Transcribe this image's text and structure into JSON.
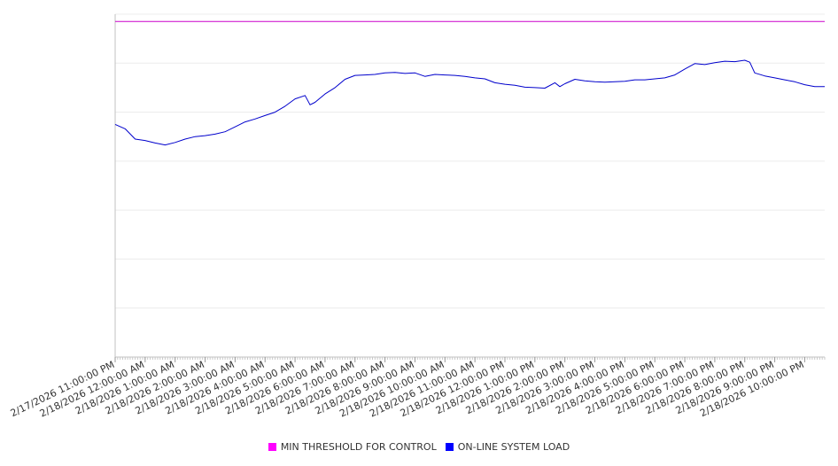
{
  "chart_data": {
    "type": "line",
    "x_axis": {
      "tick_labels": [
        "2/17/2026 11:00:00 PM",
        "2/18/2026 12:00:00 AM",
        "2/18/2026 1:00:00 AM",
        "2/18/2026 2:00:00 AM",
        "2/18/2026 3:00:00 AM",
        "2/18/2026 4:00:00 AM",
        "2/18/2026 5:00:00 AM",
        "2/18/2026 6:00:00 AM",
        "2/18/2026 7:00:00 AM",
        "2/18/2026 8:00:00 AM",
        "2/18/2026 9:00:00 AM",
        "2/18/2026 10:00:00 AM",
        "2/18/2026 11:00:00 AM",
        "2/18/2026 12:00:00 PM",
        "2/18/2026 1:00:00 PM",
        "2/18/2026 2:00:00 PM",
        "2/18/2026 3:00:00 PM",
        "2/18/2026 4:00:00 PM",
        "2/18/2026 5:00:00 PM",
        "2/18/2026 6:00:00 PM",
        "2/18/2026 7:00:00 PM",
        "2/18/2026 8:00:00 PM",
        "2/18/2026 9:00:00 PM",
        "2/18/2026 10:00:00 PM"
      ],
      "range": [
        "2/17/2026 11:00:00 PM",
        "2/18/2026 10:40:00 PM"
      ]
    },
    "y_axis": {
      "tick_labels": [],
      "range": [
        0,
        7
      ],
      "grid": true
    },
    "series": [
      {
        "name": "MIN THRESHOLD FOR CONTROL",
        "color": "#cc00cc",
        "points": [
          [
            "2/17/2026 11:00:00 PM",
            6.85
          ],
          [
            "2/18/2026 10:40:00 PM",
            6.85
          ]
        ]
      },
      {
        "name": "ON-LINE SYSTEM LOAD",
        "color": "#0000cc",
        "points": [
          [
            "2/17/2026 11:00:00 PM",
            4.75
          ],
          [
            "2/17/2026 11:20:00 PM",
            4.66
          ],
          [
            "2/17/2026 11:40:00 PM",
            4.45
          ],
          [
            "2/18/2026 12:00:00 AM",
            4.42
          ],
          [
            "2/18/2026 12:20:00 AM",
            4.37
          ],
          [
            "2/18/2026 12:40:00 AM",
            4.33
          ],
          [
            "2/18/2026 1:00:00 AM",
            4.38
          ],
          [
            "2/18/2026 1:20:00 AM",
            4.45
          ],
          [
            "2/18/2026 1:40:00 AM",
            4.5
          ],
          [
            "2/18/2026 2:00:00 AM",
            4.52
          ],
          [
            "2/18/2026 2:20:00 AM",
            4.55
          ],
          [
            "2/18/2026 2:40:00 AM",
            4.6
          ],
          [
            "2/18/2026 3:00:00 AM",
            4.7
          ],
          [
            "2/18/2026 3:20:00 AM",
            4.8
          ],
          [
            "2/18/2026 3:40:00 AM",
            4.86
          ],
          [
            "2/18/2026 4:00:00 AM",
            4.93
          ],
          [
            "2/18/2026 4:20:00 AM",
            5.0
          ],
          [
            "2/18/2026 4:40:00 AM",
            5.12
          ],
          [
            "2/18/2026 5:00:00 AM",
            5.27
          ],
          [
            "2/18/2026 5:20:00 AM",
            5.34
          ],
          [
            "2/18/2026 5:30:00 AM",
            5.15
          ],
          [
            "2/18/2026 5:40:00 AM",
            5.2
          ],
          [
            "2/18/2026 6:00:00 AM",
            5.37
          ],
          [
            "2/18/2026 6:20:00 AM",
            5.5
          ],
          [
            "2/18/2026 6:40:00 AM",
            5.67
          ],
          [
            "2/18/2026 7:00:00 AM",
            5.75
          ],
          [
            "2/18/2026 7:20:00 AM",
            5.76
          ],
          [
            "2/18/2026 7:40:00 AM",
            5.77
          ],
          [
            "2/18/2026 8:00:00 AM",
            5.8
          ],
          [
            "2/18/2026 8:20:00 AM",
            5.81
          ],
          [
            "2/18/2026 8:40:00 AM",
            5.79
          ],
          [
            "2/18/2026 9:00:00 AM",
            5.8
          ],
          [
            "2/18/2026 9:20:00 AM",
            5.73
          ],
          [
            "2/18/2026 9:40:00 AM",
            5.77
          ],
          [
            "2/18/2026 10:00:00 AM",
            5.76
          ],
          [
            "2/18/2026 10:20:00 AM",
            5.75
          ],
          [
            "2/18/2026 10:40:00 AM",
            5.73
          ],
          [
            "2/18/2026 11:00:00 AM",
            5.7
          ],
          [
            "2/18/2026 11:20:00 AM",
            5.68
          ],
          [
            "2/18/2026 11:40:00 AM",
            5.6
          ],
          [
            "2/18/2026 12:00:00 PM",
            5.57
          ],
          [
            "2/18/2026 12:20:00 PM",
            5.55
          ],
          [
            "2/18/2026 12:40:00 PM",
            5.51
          ],
          [
            "2/18/2026 1:00:00 PM",
            5.5
          ],
          [
            "2/18/2026 1:20:00 PM",
            5.49
          ],
          [
            "2/18/2026 1:40:00 PM",
            5.6
          ],
          [
            "2/18/2026 1:50:00 PM",
            5.52
          ],
          [
            "2/18/2026 2:00:00 PM",
            5.58
          ],
          [
            "2/18/2026 2:20:00 PM",
            5.67
          ],
          [
            "2/18/2026 2:40:00 PM",
            5.64
          ],
          [
            "2/18/2026 3:00:00 PM",
            5.62
          ],
          [
            "2/18/2026 3:20:00 PM",
            5.61
          ],
          [
            "2/18/2026 3:40:00 PM",
            5.62
          ],
          [
            "2/18/2026 4:00:00 PM",
            5.63
          ],
          [
            "2/18/2026 4:20:00 PM",
            5.66
          ],
          [
            "2/18/2026 4:40:00 PM",
            5.66
          ],
          [
            "2/18/2026 5:00:00 PM",
            5.68
          ],
          [
            "2/18/2026 5:20:00 PM",
            5.7
          ],
          [
            "2/18/2026 5:40:00 PM",
            5.76
          ],
          [
            "2/18/2026 6:00:00 PM",
            5.88
          ],
          [
            "2/18/2026 6:20:00 PM",
            5.99
          ],
          [
            "2/18/2026 6:40:00 PM",
            5.97
          ],
          [
            "2/18/2026 7:00:00 PM",
            6.01
          ],
          [
            "2/18/2026 7:20:00 PM",
            6.04
          ],
          [
            "2/18/2026 7:40:00 PM",
            6.03
          ],
          [
            "2/18/2026 8:00:00 PM",
            6.06
          ],
          [
            "2/18/2026 8:10:00 PM",
            6.02
          ],
          [
            "2/18/2026 8:20:00 PM",
            5.8
          ],
          [
            "2/18/2026 8:40:00 PM",
            5.74
          ],
          [
            "2/18/2026 9:00:00 PM",
            5.7
          ],
          [
            "2/18/2026 9:20:00 PM",
            5.66
          ],
          [
            "2/18/2026 9:40:00 PM",
            5.62
          ],
          [
            "2/18/2026 10:00:00 PM",
            5.56
          ],
          [
            "2/18/2026 10:20:00 PM",
            5.52
          ],
          [
            "2/18/2026 10:40:00 PM",
            5.52
          ]
        ]
      }
    ],
    "legend": {
      "position": "bottom-center",
      "entries": [
        {
          "label": "MIN THRESHOLD FOR CONTROL",
          "color": "#ff00ff"
        },
        {
          "label": "ON-LINE SYSTEM LOAD",
          "color": "#0000ff"
        }
      ]
    }
  }
}
